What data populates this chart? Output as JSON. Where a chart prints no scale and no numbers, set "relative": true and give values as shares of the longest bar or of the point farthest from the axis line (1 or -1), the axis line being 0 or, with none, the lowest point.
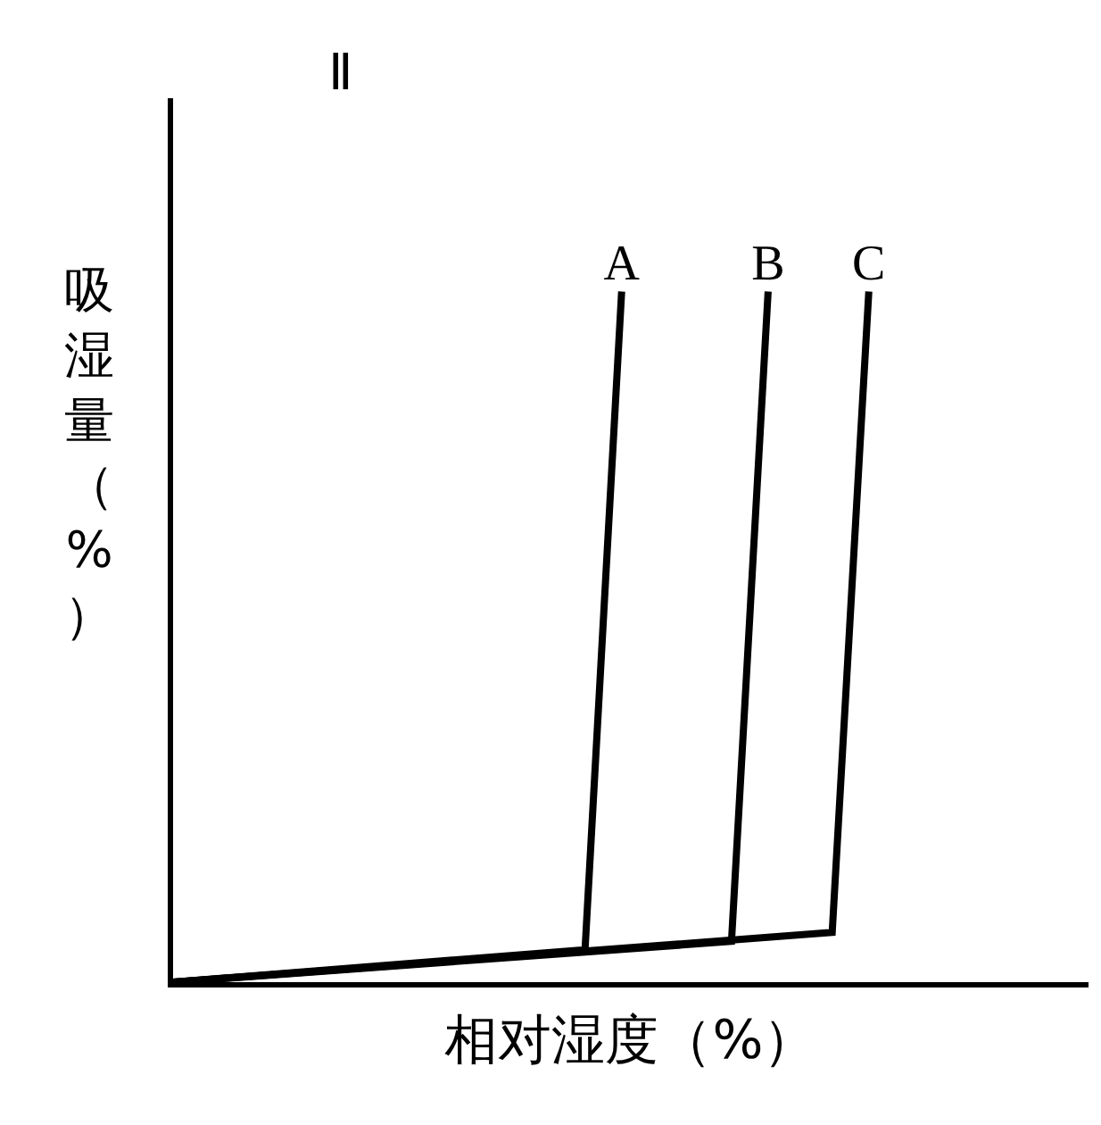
{
  "chart_data": {
    "type": "line",
    "title": "Ⅱ",
    "xlabel": "相对湿度（%）",
    "ylabel": "吸湿量（%）",
    "relative": true,
    "tick_labels": false,
    "legend": false,
    "marker": "none",
    "line_style": "solid",
    "categories": [
      null,
      null,
      null,
      null,
      null,
      null,
      null,
      null,
      null,
      null,
      null,
      null,
      null,
      null,
      null,
      null,
      null,
      null,
      null,
      null,
      null,
      null,
      null,
      null,
      null,
      null,
      null,
      null,
      null,
      null,
      null,
      null,
      null,
      null,
      null,
      null,
      null,
      null,
      null,
      null,
      null,
      null,
      null,
      null,
      null,
      null,
      null,
      null,
      null,
      null,
      null,
      null,
      null,
      null,
      null,
      null,
      null,
      null,
      null,
      null,
      null,
      null,
      null,
      null,
      null,
      null,
      null,
      null,
      null,
      null,
      null,
      null,
      null,
      null,
      null,
      null,
      null,
      null,
      null,
      null,
      null,
      null,
      null,
      null,
      null,
      null,
      null,
      null,
      null,
      null,
      null,
      null,
      null,
      null,
      null,
      null,
      null,
      null,
      null,
      null,
      null
    ],
    "series": [
      {
        "name": "A",
        "color": "#000000",
        "values": [
          0,
          null,
          null,
          null,
          null,
          null,
          null,
          null,
          null,
          null,
          null,
          null,
          null,
          null,
          null,
          null,
          null,
          null,
          null,
          null,
          null,
          null,
          null,
          null,
          null,
          null,
          null,
          null,
          null,
          null,
          null,
          null,
          null,
          null,
          null,
          null,
          null,
          null,
          null,
          null,
          null,
          null,
          null,
          null,
          null,
          0.047,
          null,
          null,
          null,
          1,
          null,
          null,
          null,
          null,
          null,
          null,
          null,
          null,
          null,
          null,
          null,
          null,
          null,
          null,
          null,
          null,
          null,
          null,
          null,
          null,
          null,
          null,
          null,
          null,
          null,
          null,
          null,
          null,
          null,
          null,
          null,
          null,
          null,
          null,
          null,
          null,
          null,
          null,
          null,
          null,
          null,
          null,
          null,
          null,
          null,
          null,
          null,
          null,
          null,
          null,
          null
        ]
      },
      {
        "name": "B",
        "color": "#000000",
        "values": [
          0,
          null,
          null,
          null,
          null,
          null,
          null,
          null,
          null,
          null,
          null,
          null,
          null,
          null,
          null,
          null,
          null,
          null,
          null,
          null,
          null,
          null,
          null,
          null,
          null,
          null,
          null,
          null,
          null,
          null,
          null,
          null,
          null,
          null,
          null,
          null,
          null,
          null,
          null,
          null,
          null,
          null,
          null,
          null,
          null,
          null,
          null,
          null,
          null,
          null,
          null,
          null,
          null,
          null,
          null,
          null,
          null,
          null,
          null,
          null,
          null,
          0.059,
          null,
          null,
          null,
          1,
          null,
          null,
          null,
          null,
          null,
          null,
          null,
          null,
          null,
          null,
          null,
          null,
          null,
          null,
          null,
          null,
          null,
          null,
          null,
          null,
          null,
          null,
          null,
          null,
          null,
          null,
          null,
          null,
          null,
          null,
          null,
          null,
          null,
          null,
          null
        ]
      },
      {
        "name": "C",
        "color": "#000000",
        "values": [
          0,
          null,
          null,
          null,
          null,
          null,
          null,
          null,
          null,
          null,
          null,
          null,
          null,
          null,
          null,
          null,
          null,
          null,
          null,
          null,
          null,
          null,
          null,
          null,
          null,
          null,
          null,
          null,
          null,
          null,
          null,
          null,
          null,
          null,
          null,
          null,
          null,
          null,
          null,
          null,
          null,
          null,
          null,
          null,
          null,
          null,
          null,
          null,
          null,
          null,
          null,
          null,
          null,
          null,
          null,
          null,
          null,
          null,
          null,
          null,
          null,
          null,
          null,
          null,
          null,
          null,
          null,
          null,
          null,
          null,
          null,
          null,
          0.072,
          null,
          null,
          null,
          1,
          null,
          null,
          null,
          null,
          null,
          null,
          null,
          null,
          null,
          null,
          null,
          null,
          null,
          null,
          null,
          null,
          null,
          null,
          null,
          null,
          null,
          null,
          null,
          null
        ]
      }
    ]
  }
}
